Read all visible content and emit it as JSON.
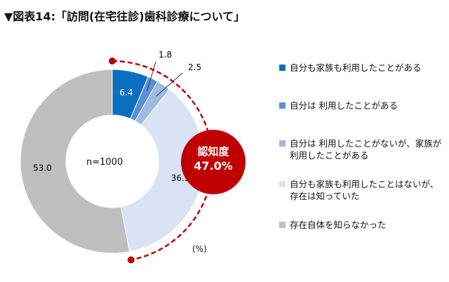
{
  "title": "▼図表14:「訪問(在宅往診)歯科診療について」",
  "unit_label": "(%)",
  "sample_label": "n=1000",
  "highlight": {
    "label": "認知度",
    "value": "47.0%",
    "color": "#c00000"
  },
  "legend": [
    {
      "label": "自分も家族も利用したことがある",
      "color": "#0b6fc0"
    },
    {
      "label": "自分は 利用したことがある",
      "color": "#5b8fd6"
    },
    {
      "label": "自分は 利用したことがないが、家族が利用したことがある",
      "color": "#9cbbe3"
    },
    {
      "label": "自分も家族も利用したことはないが、存在は知っていた",
      "color": "#d9e3f3"
    },
    {
      "label": "存在自体を知らなかった",
      "color": "#bfbfbf"
    }
  ],
  "chart_data": {
    "type": "pie",
    "donut": true,
    "categories": [
      "自分も家族も利用したことがある",
      "自分は 利用したことがある",
      "自分は 利用したことがないが、家族が利用したことがある",
      "自分も家族も利用したことはないが、存在は知っていた",
      "存在自体を知らなかった"
    ],
    "values": [
      6.4,
      1.8,
      2.5,
      36.3,
      53.0
    ],
    "labels": [
      "6.4",
      "1.8",
      "2.5",
      "36.3",
      "53.0"
    ],
    "colors": [
      "#0b6fc0",
      "#5b8fd6",
      "#9cbbe3",
      "#d9e3f3",
      "#bfbfbf"
    ],
    "start": "12 o'clock, clockwise"
  }
}
